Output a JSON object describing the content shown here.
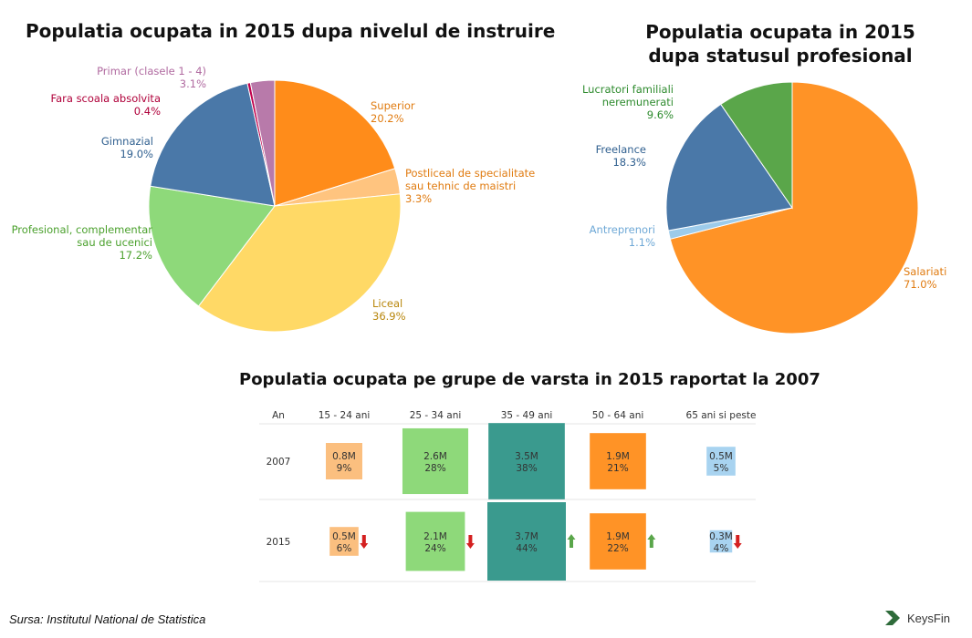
{
  "chart_data": [
    {
      "type": "pie",
      "title": "Populatia ocupata in 2015 dupa nivelul de instruire",
      "slices": [
        {
          "label": "Superior",
          "value": 20.2,
          "display": "20.2%",
          "color": "#ff8c1a",
          "labelColor": "#e07b10"
        },
        {
          "label": "Postliceal de specialitate sau tehnic de maistri",
          "lines": [
            "Postliceal de specialitate",
            "sau tehnic de maistri"
          ],
          "value": 3.3,
          "display": "3.3%",
          "color": "#ffc47f",
          "labelColor": "#e07b10"
        },
        {
          "label": "Liceal",
          "value": 36.9,
          "display": "36.9%",
          "color": "#ffd966",
          "labelColor": "#b8860b"
        },
        {
          "label": "Profesional, complementar sau de ucenici",
          "lines": [
            "Profesional, complementar",
            "sau de ucenici"
          ],
          "value": 17.2,
          "display": "17.2%",
          "color": "#8ed97a",
          "labelColor": "#4aa02c"
        },
        {
          "label": "Gimnazial",
          "value": 19.0,
          "display": "19.0%",
          "color": "#4a78a8",
          "labelColor": "#2f5f8f"
        },
        {
          "label": "Fara scoala absolvita",
          "value": 0.4,
          "display": "0.4%",
          "color": "#c0004b",
          "labelColor": "#b0003a"
        },
        {
          "label": "Primar (clasele 1 - 4)",
          "value": 3.1,
          "display": "3.1%",
          "color": "#b87aaa",
          "labelColor": "#b06aa0"
        }
      ]
    },
    {
      "type": "pie",
      "title": "Populatia ocupata in 2015 dupa statusul profesional",
      "title_lines": [
        "Populatia ocupata in 2015",
        "dupa statusul profesional"
      ],
      "slices": [
        {
          "label": "Salariati",
          "value": 71.0,
          "display": "71.0%",
          "color": "#ff9326",
          "labelColor": "#e07b10"
        },
        {
          "label": "Antreprenori",
          "value": 1.1,
          "display": "1.1%",
          "color": "#9dcbea",
          "labelColor": "#6ea8d6"
        },
        {
          "label": "Freelance",
          "value": 18.3,
          "display": "18.3%",
          "color": "#4a78a8",
          "labelColor": "#2f5f8f"
        },
        {
          "label": "Lucratori familiali neremunerati",
          "lines": [
            "Lucratori familiali",
            "neremunerati"
          ],
          "value": 9.6,
          "display": "9.6%",
          "color": "#5aa64a",
          "labelColor": "#2e8b2e"
        }
      ]
    },
    {
      "type": "table",
      "title": "Populatia ocupata pe grupe de varsta in 2015 raportat la 2007",
      "row_header": "An",
      "columns": [
        "15 - 24 ani",
        "25 - 34 ani",
        "35 - 49 ani",
        "50 - 64 ani",
        "65 ani si peste"
      ],
      "colors": [
        "#fbbf7f",
        "#8ed97a",
        "#3a9a8e",
        "#ff9326",
        "#a8d3f0"
      ],
      "rows": [
        {
          "year": "2007",
          "cells": [
            {
              "value": 0.8,
              "display": "0.8M",
              "pct": "9%"
            },
            {
              "value": 2.6,
              "display": "2.6M",
              "pct": "28%"
            },
            {
              "value": 3.5,
              "display": "3.5M",
              "pct": "38%"
            },
            {
              "value": 1.9,
              "display": "1.9M",
              "pct": "21%"
            },
            {
              "value": 0.5,
              "display": "0.5M",
              "pct": "5%"
            }
          ]
        },
        {
          "year": "2015",
          "cells": [
            {
              "value": 0.5,
              "display": "0.5M",
              "pct": "6%",
              "trend": "down"
            },
            {
              "value": 2.1,
              "display": "2.1M",
              "pct": "24%",
              "trend": "down"
            },
            {
              "value": 3.7,
              "display": "3.7M",
              "pct": "44%",
              "trend": "up"
            },
            {
              "value": 1.9,
              "display": "1.9M",
              "pct": "22%",
              "trend": "up"
            },
            {
              "value": 0.3,
              "display": "0.3M",
              "pct": "4%",
              "trend": "down"
            }
          ]
        }
      ],
      "trend_colors": {
        "up": "#5aa64a",
        "down": "#d42020"
      }
    }
  ],
  "footer": {
    "source": "Sursa: Institutul National de Statistica",
    "logo": "KeysFin"
  }
}
